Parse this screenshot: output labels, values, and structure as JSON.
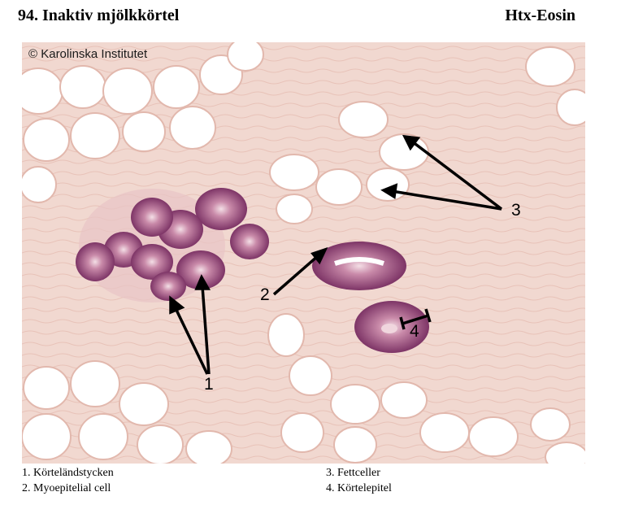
{
  "header": {
    "title": "94. Inaktiv mjölkkörtel",
    "stain": "Htx-Eosin"
  },
  "figure": {
    "copyright": "© Karolinska Institutet",
    "callouts": [
      "1",
      "2",
      "3",
      "4"
    ]
  },
  "legend": {
    "items": [
      "1. Körteländstycken",
      "2. Myoepitelial cell",
      "3. Fettceller",
      "4. Körtelepitel"
    ]
  },
  "colors": {
    "stroma": "#f1d8d0",
    "fat": "#ffffff",
    "nuclei": "#6b2a5a",
    "epithelium": "#b66a93"
  }
}
